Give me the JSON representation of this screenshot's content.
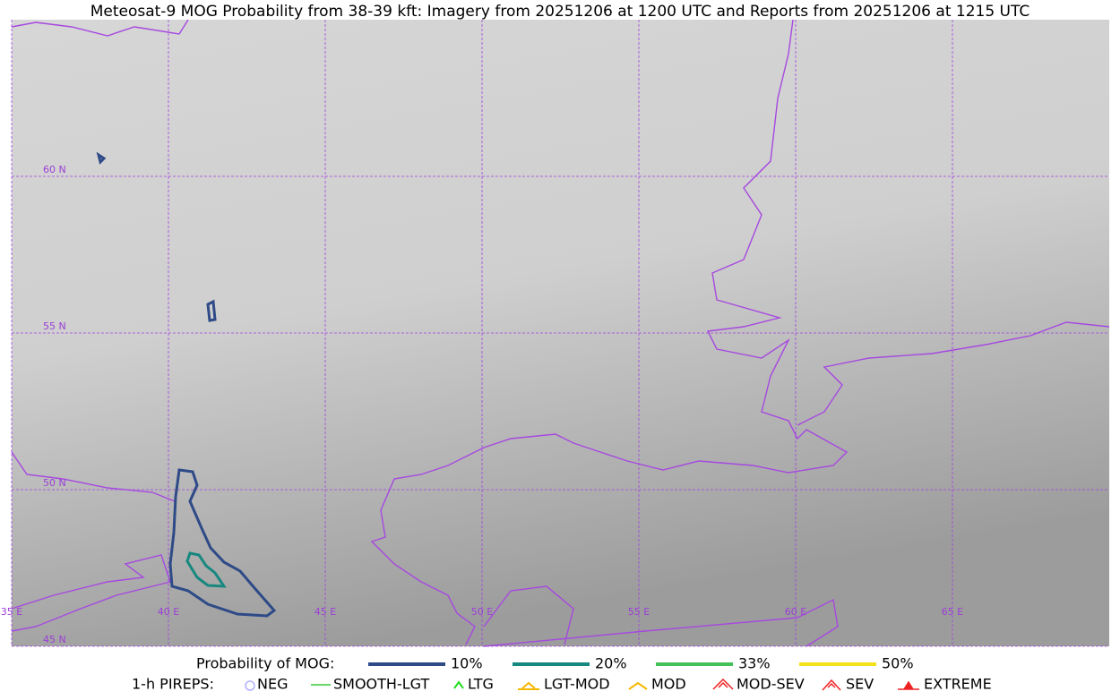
{
  "title": "Meteosat-9 MOG Probability from 38-39 kft: Imagery from 20251206 at 1200 UTC and Reports from 20251206 at 1215 UTC",
  "map": {
    "lon_labels": [
      "35 E",
      "40 E",
      "45 E",
      "50 E",
      "55 E",
      "60 E",
      "65 E"
    ],
    "lat_labels": [
      "60 N",
      "55 N",
      "50 N",
      "45 N"
    ]
  },
  "legend": {
    "probability_label": "Probability of MOG:",
    "probability_items": [
      {
        "name": "10%",
        "color": "#2e4a87"
      },
      {
        "name": "20%",
        "color": "#16887f"
      },
      {
        "name": "33%",
        "color": "#45c15a"
      },
      {
        "name": "50%",
        "color": "#f5e11a"
      }
    ],
    "pireps_label": "1-h PIREPS:",
    "pireps_items": [
      {
        "name": "NEG",
        "color": "#b0b0ff"
      },
      {
        "name": "SMOOTH-LGT",
        "color": "#33cc33"
      },
      {
        "name": "LTG",
        "color": "#22dd22"
      },
      {
        "name": "LGT-MOD",
        "color": "#f5b800"
      },
      {
        "name": "MOD",
        "color": "#f5b800"
      },
      {
        "name": "MOD-SEV",
        "color": "#ee2222"
      },
      {
        "name": "SEV",
        "color": "#ee2222"
      },
      {
        "name": "EXTREME",
        "color": "#ee2222"
      }
    ]
  }
}
